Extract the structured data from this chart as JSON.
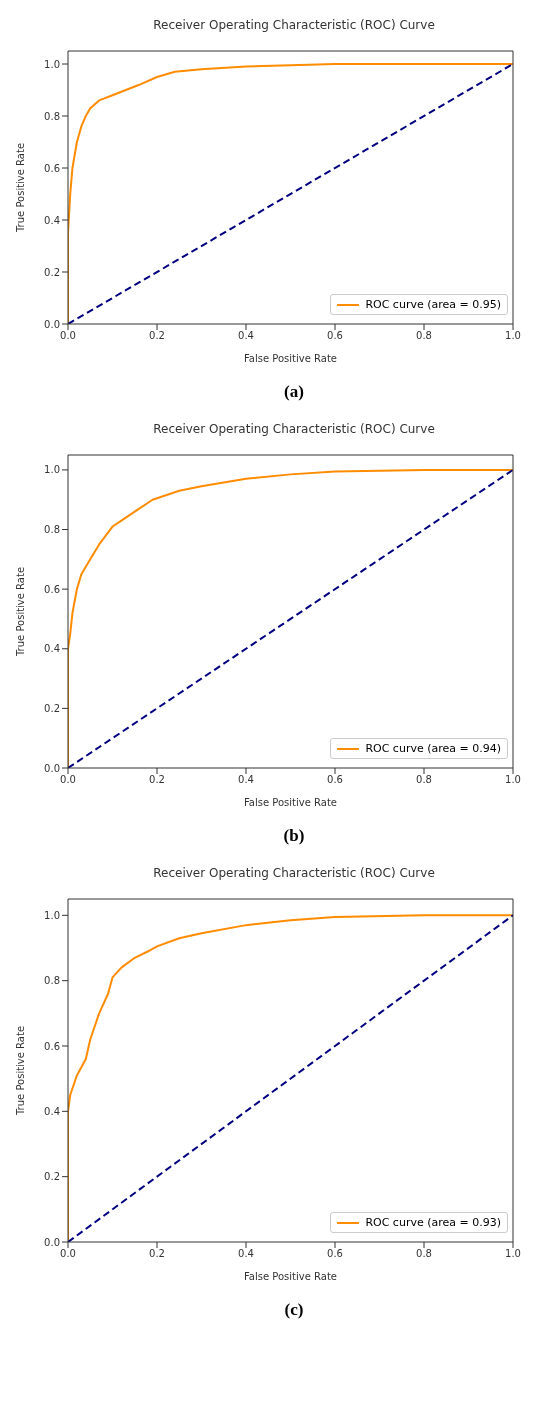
{
  "chart_data": [
    {
      "type": "line",
      "title": "Receiver Operating Characteristic (ROC) Curve",
      "xlabel": "False Positive Rate",
      "ylabel": "True Positive Rate",
      "xlim": [
        0,
        1
      ],
      "ylim": [
        0,
        1.05
      ],
      "xticks": [
        {
          "value": 0,
          "label": "0.0"
        },
        {
          "value": 0.2,
          "label": "0.2"
        },
        {
          "value": 0.4,
          "label": "0.4"
        },
        {
          "value": 0.6,
          "label": "0.6"
        },
        {
          "value": 0.8,
          "label": "0.8"
        },
        {
          "value": 1,
          "label": "1.0"
        }
      ],
      "yticks": [
        {
          "value": 0,
          "label": "0.0"
        },
        {
          "value": 0.2,
          "label": "0.2"
        },
        {
          "value": 0.4,
          "label": "0.4"
        },
        {
          "value": 0.6,
          "label": "0.6"
        },
        {
          "value": 0.8,
          "label": "0.8"
        },
        {
          "value": 1,
          "label": "1.0"
        }
      ],
      "legend": "bottom right",
      "marker": "none",
      "annotations": [
        "(a)"
      ],
      "series": [
        {
          "name": "ROC curve (area = 0.95)",
          "color": "#ff8c00",
          "line_style": "solid",
          "x": [
            0,
            0,
            0.005,
            0.01,
            0.02,
            0.03,
            0.04,
            0.05,
            0.07,
            0.1,
            0.13,
            0.16,
            0.2,
            0.24,
            0.3,
            0.4,
            0.5,
            0.6,
            0.8,
            1
          ],
          "values": [
            0,
            0.35,
            0.5,
            0.6,
            0.7,
            0.76,
            0.8,
            0.83,
            0.86,
            0.88,
            0.9,
            0.92,
            0.95,
            0.97,
            0.98,
            0.99,
            0.995,
            1,
            1,
            1
          ]
        },
        {
          "color": "#000080",
          "line_style": "dashed",
          "x": [
            0,
            1
          ],
          "values": [
            0,
            1
          ]
        }
      ]
    },
    {
      "type": "line",
      "title": "Receiver Operating Characteristic (ROC) Curve",
      "xlabel": "False Positive Rate",
      "ylabel": "True Positive Rate",
      "xlim": [
        0,
        1
      ],
      "ylim": [
        0,
        1.05
      ],
      "xticks": [
        {
          "value": 0,
          "label": "0.0"
        },
        {
          "value": 0.2,
          "label": "0.2"
        },
        {
          "value": 0.4,
          "label": "0.4"
        },
        {
          "value": 0.6,
          "label": "0.6"
        },
        {
          "value": 0.8,
          "label": "0.8"
        },
        {
          "value": 1,
          "label": "1.0"
        }
      ],
      "yticks": [
        {
          "value": 0,
          "label": "0.0"
        },
        {
          "value": 0.2,
          "label": "0.2"
        },
        {
          "value": 0.4,
          "label": "0.4"
        },
        {
          "value": 0.6,
          "label": "0.6"
        },
        {
          "value": 0.8,
          "label": "0.8"
        },
        {
          "value": 1,
          "label": "1.0"
        }
      ],
      "legend": "bottom right",
      "marker": "none",
      "annotations": [
        "(b)"
      ],
      "series": [
        {
          "name": "ROC curve (area = 0.94)",
          "color": "#ff8c00",
          "line_style": "solid",
          "x": [
            0,
            0,
            0.005,
            0.01,
            0.02,
            0.03,
            0.05,
            0.07,
            0.1,
            0.12,
            0.15,
            0.19,
            0.25,
            0.3,
            0.4,
            0.5,
            0.6,
            0.8,
            1
          ],
          "values": [
            0,
            0.4,
            0.45,
            0.52,
            0.6,
            0.65,
            0.7,
            0.75,
            0.81,
            0.83,
            0.86,
            0.9,
            0.93,
            0.945,
            0.97,
            0.985,
            0.995,
            1,
            1
          ]
        },
        {
          "color": "#000080",
          "line_style": "dashed",
          "x": [
            0,
            1
          ],
          "values": [
            0,
            1
          ]
        }
      ]
    },
    {
      "type": "line",
      "title": "Receiver Operating Characteristic (ROC) Curve",
      "xlabel": "False Positive Rate",
      "ylabel": "True Positive Rate",
      "xlim": [
        0,
        1
      ],
      "ylim": [
        0,
        1.05
      ],
      "xticks": [
        {
          "value": 0,
          "label": "0.0"
        },
        {
          "value": 0.2,
          "label": "0.2"
        },
        {
          "value": 0.4,
          "label": "0.4"
        },
        {
          "value": 0.6,
          "label": "0.6"
        },
        {
          "value": 0.8,
          "label": "0.8"
        },
        {
          "value": 1,
          "label": "1.0"
        }
      ],
      "yticks": [
        {
          "value": 0,
          "label": "0.0"
        },
        {
          "value": 0.2,
          "label": "0.2"
        },
        {
          "value": 0.4,
          "label": "0.4"
        },
        {
          "value": 0.6,
          "label": "0.6"
        },
        {
          "value": 0.8,
          "label": "0.8"
        },
        {
          "value": 1,
          "label": "1.0"
        }
      ],
      "legend": "bottom right",
      "marker": "none",
      "annotations": [
        "(c)"
      ],
      "series": [
        {
          "name": "ROC curve (area = 0.93)",
          "color": "#ff8c00",
          "line_style": "solid",
          "x": [
            0,
            0,
            0.005,
            0.02,
            0.04,
            0.05,
            0.07,
            0.09,
            0.1,
            0.12,
            0.15,
            0.18,
            0.2,
            0.25,
            0.3,
            0.4,
            0.5,
            0.6,
            0.8,
            1
          ],
          "values": [
            0,
            0.4,
            0.45,
            0.51,
            0.56,
            0.62,
            0.7,
            0.76,
            0.81,
            0.84,
            0.87,
            0.89,
            0.905,
            0.93,
            0.945,
            0.97,
            0.985,
            0.995,
            1,
            1
          ]
        },
        {
          "color": "#000080",
          "line_style": "dashed",
          "x": [
            0,
            1
          ],
          "values": [
            0,
            1
          ]
        }
      ]
    }
  ]
}
